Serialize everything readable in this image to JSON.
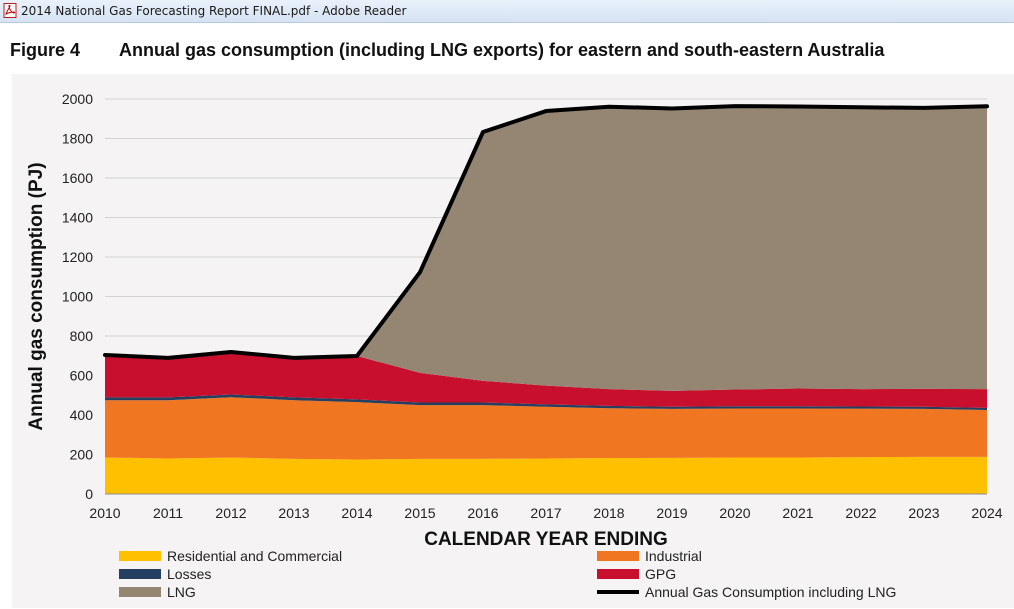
{
  "window": {
    "title": "2014 National Gas Forecasting Report FINAL.pdf - Adobe Reader"
  },
  "figure": {
    "label": "Figure 4",
    "title": "Annual gas consumption (including LNG exports) for eastern and south-eastern Australia"
  },
  "chart_data": {
    "type": "area",
    "title": "Annual gas consumption (including LNG exports) for eastern and south-eastern Australia",
    "xlabel": "CALENDAR YEAR ENDING",
    "ylabel": "Annual gas consumption (PJ)",
    "x": [
      "2010",
      "2011",
      "2012",
      "2013",
      "2014",
      "2015",
      "2016",
      "2017",
      "2018",
      "2019",
      "2020",
      "2021",
      "2022",
      "2023",
      "2024"
    ],
    "yticks": [
      0,
      200,
      400,
      600,
      800,
      1000,
      1200,
      1400,
      1600,
      1800,
      2000
    ],
    "ylim": [
      0,
      2000
    ],
    "stacked": true,
    "grid": true,
    "legend_position": "bottom",
    "series": [
      {
        "name": "Residential and Commercial",
        "color": "#ffc000",
        "values": [
          185,
          180,
          185,
          178,
          175,
          178,
          178,
          180,
          182,
          183,
          185,
          185,
          187,
          188,
          188
        ]
      },
      {
        "name": "Industrial",
        "color": "#f07622",
        "values": [
          290,
          295,
          305,
          297,
          290,
          272,
          272,
          262,
          252,
          248,
          248,
          248,
          245,
          243,
          237
        ]
      },
      {
        "name": "Losses",
        "color": "#243f60",
        "values": [
          14,
          14,
          14,
          14,
          14,
          13,
          13,
          12,
          12,
          11,
          11,
          11,
          11,
          11,
          11
        ]
      },
      {
        "name": "GPG",
        "color": "#c8102e",
        "values": [
          215,
          200,
          215,
          200,
          220,
          150,
          110,
          95,
          85,
          80,
          85,
          90,
          88,
          90,
          95
        ]
      },
      {
        "name": "LNG",
        "color": "#948672",
        "values": [
          0,
          0,
          0,
          0,
          0,
          510,
          1260,
          1390,
          1430,
          1430,
          1435,
          1428,
          1427,
          1423,
          1432
        ]
      }
    ],
    "total_line": {
      "name": "Annual Gas Consumption including LNG",
      "color": "#000000",
      "values": [
        704,
        689,
        719,
        689,
        699,
        1123,
        1833,
        1939,
        1961,
        1952,
        1964,
        1962,
        1958,
        1955,
        1963
      ]
    },
    "legend": [
      {
        "name": "Residential and Commercial",
        "color": "#ffc000",
        "kind": "box"
      },
      {
        "name": "Industrial",
        "color": "#f07622",
        "kind": "box"
      },
      {
        "name": "Losses",
        "color": "#243f60",
        "kind": "box"
      },
      {
        "name": "GPG",
        "color": "#c8102e",
        "kind": "box"
      },
      {
        "name": "LNG",
        "color": "#948672",
        "kind": "box"
      },
      {
        "name": "Annual Gas Consumption including LNG",
        "color": "#000000",
        "kind": "line"
      }
    ]
  }
}
